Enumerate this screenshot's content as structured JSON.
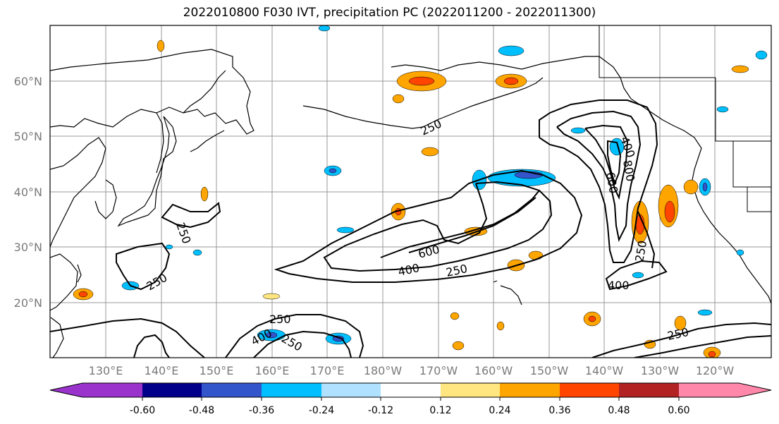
{
  "title": "2022010800 F030 IVT, precipitation PC (2022011200 - 2022011300)",
  "map": {
    "lat_labels": [
      "60°N",
      "50°N",
      "40°N",
      "30°N",
      "20°N"
    ],
    "lon_labels": [
      "130°E",
      "140°E",
      "150°E",
      "160°E",
      "170°E",
      "180°W",
      "170°W",
      "160°W",
      "150°W",
      "140°W",
      "130°W",
      "120°W"
    ],
    "contour_labels": [
      "250",
      "250",
      "250",
      "250",
      "250",
      "250",
      "250",
      "250",
      "400",
      "400",
      "400",
      "400",
      "600",
      "600",
      "800"
    ]
  },
  "colorbar": {
    "colors": [
      "#9933cc",
      "#00008b",
      "#3355cc",
      "#00bfff",
      "#b0e2ff",
      "#ffffff",
      "#ffe680",
      "#ffa500",
      "#ff4500",
      "#b22222",
      "#ff88aa"
    ],
    "tick_labels": [
      "-0.60",
      "-0.48",
      "-0.36",
      "-0.24",
      "-0.12",
      "0.12",
      "0.24",
      "0.36",
      "0.48",
      "0.60"
    ]
  }
}
